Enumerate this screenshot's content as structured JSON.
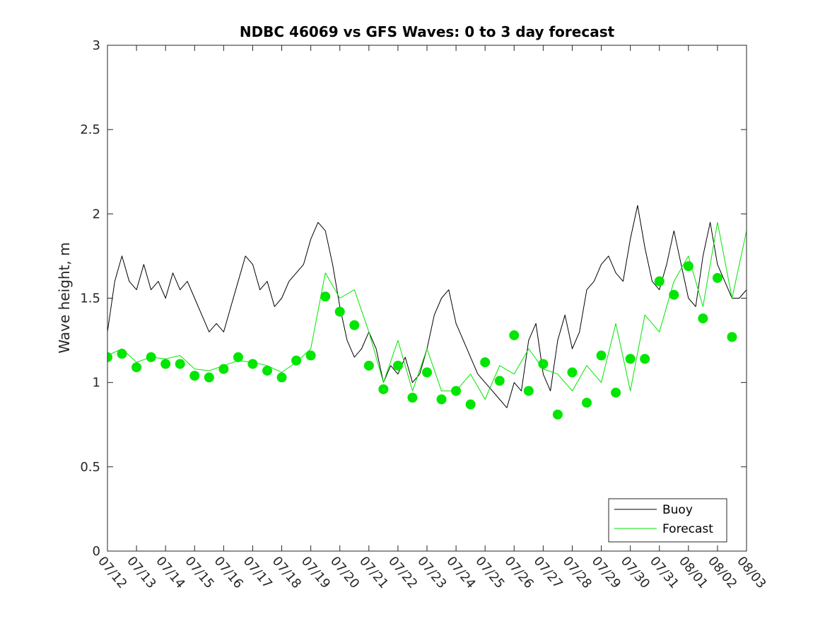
{
  "chart_data": {
    "type": "line",
    "title": "NDBC 46069 vs GFS Waves: 0 to 3 day forecast",
    "xlabel": "",
    "ylabel": "Wave height, m",
    "ylim": [
      0,
      3
    ],
    "yticks": [
      "0",
      "0.5",
      "1",
      "1.5",
      "2",
      "2.5",
      "3"
    ],
    "xlim": [
      "07/12",
      "08/03"
    ],
    "xticks": [
      "07/12",
      "07/13",
      "07/14",
      "07/15",
      "07/16",
      "07/17",
      "07/18",
      "07/19",
      "07/20",
      "07/21",
      "07/22",
      "07/23",
      "07/24",
      "07/25",
      "07/26",
      "07/27",
      "07/28",
      "07/29",
      "07/30",
      "07/31",
      "08/01",
      "08/02",
      "08/03"
    ],
    "grid": false,
    "legend_position": "bottom-right",
    "legend": [
      {
        "label": "Buoy",
        "color": "#000000"
      },
      {
        "label": "Forecast",
        "color": "#00e600"
      }
    ],
    "series": [
      {
        "name": "Buoy",
        "color": "#000000",
        "x_days": [
          0.0,
          0.25,
          0.5,
          0.75,
          1.0,
          1.25,
          1.5,
          1.75,
          2.0,
          2.25,
          2.5,
          2.75,
          3.0,
          3.25,
          3.5,
          3.75,
          4.0,
          4.25,
          4.5,
          4.75,
          5.0,
          5.25,
          5.5,
          5.75,
          6.0,
          6.25,
          6.5,
          6.75,
          7.0,
          7.25,
          7.5,
          7.75,
          8.0,
          8.25,
          8.5,
          8.75,
          9.0,
          9.25,
          9.5,
          9.75,
          10.0,
          10.25,
          10.5,
          10.75,
          11.0,
          11.25,
          11.5,
          11.75,
          12.0,
          12.25,
          12.5,
          12.75,
          13.0,
          13.25,
          13.5,
          13.75,
          14.0,
          14.25,
          14.5,
          14.75,
          15.0,
          15.25,
          15.5,
          15.75,
          16.0,
          16.25,
          16.5,
          16.75,
          17.0,
          17.25,
          17.5,
          17.75,
          18.0,
          18.25,
          18.5,
          18.75,
          19.0,
          19.25,
          19.5,
          19.75,
          20.0,
          20.25,
          20.5,
          20.75,
          21.0,
          21.25,
          21.5,
          21.75,
          22.0
        ],
        "values": [
          1.3,
          1.6,
          1.75,
          1.6,
          1.55,
          1.7,
          1.55,
          1.6,
          1.5,
          1.65,
          1.55,
          1.6,
          1.5,
          1.4,
          1.3,
          1.35,
          1.3,
          1.45,
          1.6,
          1.75,
          1.7,
          1.55,
          1.6,
          1.45,
          1.5,
          1.6,
          1.65,
          1.7,
          1.85,
          1.95,
          1.9,
          1.7,
          1.45,
          1.25,
          1.15,
          1.2,
          1.3,
          1.2,
          1.0,
          1.1,
          1.05,
          1.15,
          1.0,
          1.05,
          1.2,
          1.4,
          1.5,
          1.55,
          1.35,
          1.25,
          1.15,
          1.05,
          1.0,
          0.95,
          0.9,
          0.85,
          1.0,
          0.95,
          1.25,
          1.35,
          1.05,
          0.95,
          1.25,
          1.4,
          1.2,
          1.3,
          1.55,
          1.6,
          1.7,
          1.75,
          1.65,
          1.6,
          1.85,
          2.05,
          1.8,
          1.6,
          1.55,
          1.7,
          1.9,
          1.7,
          1.5,
          1.45,
          1.75,
          1.95,
          1.7,
          1.6,
          1.5,
          1.5,
          1.55
        ]
      },
      {
        "name": "Forecast",
        "color": "#00e600",
        "x_days": [
          0.0,
          0.5,
          1.0,
          1.5,
          2.0,
          2.5,
          3.0,
          3.5,
          4.0,
          4.5,
          5.0,
          5.5,
          6.0,
          6.5,
          7.0,
          7.5,
          8.0,
          8.5,
          9.0,
          9.5,
          10.0,
          10.5,
          11.0,
          11.5,
          12.0,
          12.5,
          13.0,
          13.5,
          14.0,
          14.5,
          15.0,
          15.5,
          16.0,
          16.5,
          17.0,
          17.5,
          18.0,
          18.5,
          19.0,
          19.5,
          20.0,
          20.5,
          21.0,
          21.5,
          22.0
        ],
        "values": [
          1.16,
          1.2,
          1.12,
          1.15,
          1.14,
          1.16,
          1.08,
          1.07,
          1.1,
          1.13,
          1.12,
          1.1,
          1.06,
          1.12,
          1.2,
          1.65,
          1.5,
          1.55,
          1.3,
          1.0,
          1.25,
          0.95,
          1.2,
          0.95,
          0.95,
          1.05,
          0.9,
          1.1,
          1.05,
          1.2,
          1.08,
          1.05,
          0.95,
          1.1,
          1.0,
          1.35,
          0.95,
          1.4,
          1.3,
          1.6,
          1.75,
          1.45,
          1.95,
          1.5,
          1.9
        ]
      },
      {
        "name": "Forecast",
        "color": "#00e600",
        "marker": "circle",
        "x_days": [
          0.0,
          0.5,
          1.0,
          1.5,
          2.0,
          2.5,
          3.0,
          3.5,
          4.0,
          4.5,
          5.0,
          5.5,
          6.0,
          6.5,
          7.0,
          7.5,
          8.0,
          8.5,
          9.0,
          9.5,
          10.0,
          10.5,
          11.0,
          11.5,
          12.0,
          12.5,
          13.0,
          13.5,
          14.0,
          14.5,
          15.0,
          15.5,
          16.0,
          16.5,
          17.0,
          17.5,
          18.0,
          18.5,
          19.0,
          19.5,
          20.0,
          20.5,
          21.0,
          21.5
        ],
        "values": [
          1.15,
          1.17,
          1.09,
          1.15,
          1.11,
          1.11,
          1.04,
          1.03,
          1.08,
          1.15,
          1.11,
          1.07,
          1.03,
          1.13,
          1.16,
          1.51,
          1.42,
          1.34,
          1.1,
          0.96,
          1.1,
          0.91,
          1.06,
          0.9,
          0.95,
          0.87,
          1.12,
          1.01,
          1.28,
          0.95,
          1.11,
          0.81,
          1.06,
          0.88,
          1.16,
          0.94,
          1.14,
          1.14,
          1.6,
          1.52,
          1.69,
          1.38,
          1.62,
          1.27
        ]
      }
    ]
  }
}
